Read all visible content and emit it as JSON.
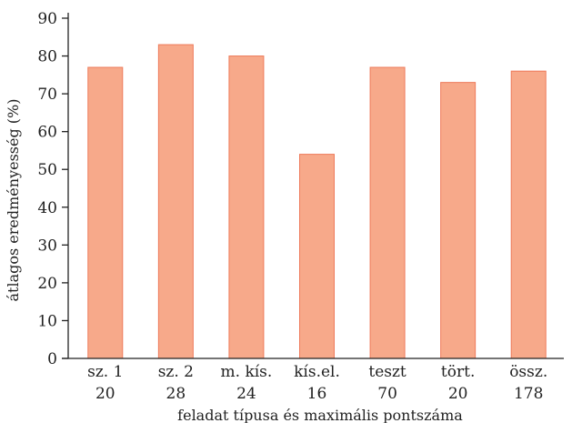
{
  "chart_data": {
    "type": "bar",
    "categories": [
      {
        "label": "sz. 1",
        "max_points": "20"
      },
      {
        "label": "sz. 2",
        "max_points": "28"
      },
      {
        "label": "m. kís.",
        "max_points": "24"
      },
      {
        "label": "kís.el.",
        "max_points": "16"
      },
      {
        "label": "teszt",
        "max_points": "70"
      },
      {
        "label": "tört.",
        "max_points": "20"
      },
      {
        "label": "össz.",
        "max_points": "178"
      }
    ],
    "values": [
      77,
      83,
      80,
      54,
      77,
      73,
      76
    ],
    "ylim": [
      0,
      90
    ],
    "yticks": [
      0,
      10,
      20,
      30,
      40,
      50,
      60,
      70,
      80,
      90
    ],
    "xlabel": "feladat típusa és maximális pontszáma",
    "ylabel": "átlagos eredményesség (%)",
    "grid": false,
    "bar_fill": "#F7A98A",
    "bar_stroke": "#EE7A5A",
    "axis_color": "#222222"
  }
}
